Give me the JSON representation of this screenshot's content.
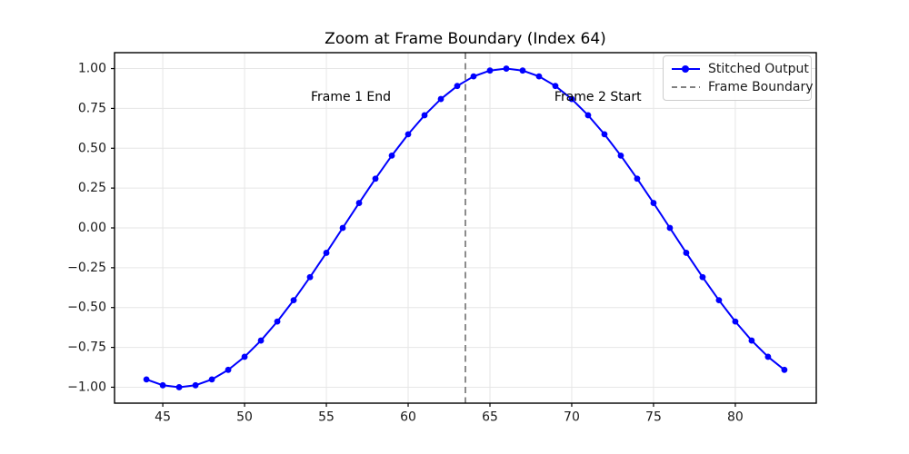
{
  "chart_data": {
    "type": "line",
    "title": "Zoom at Frame Boundary (Index 64)",
    "xlabel": "",
    "ylabel": "",
    "xlim": [
      42.05,
      84.95
    ],
    "ylim": [
      -1.1,
      1.1
    ],
    "grid": true,
    "legend_position": "upper right",
    "x_ticks": [
      45,
      50,
      55,
      60,
      65,
      70,
      75,
      80
    ],
    "x_tick_labels": [
      "45",
      "50",
      "55",
      "60",
      "65",
      "70",
      "75",
      "80"
    ],
    "y_ticks": [
      1.0,
      0.75,
      0.5,
      0.25,
      0.0,
      -0.25,
      -0.5,
      -0.75,
      -1.0
    ],
    "y_tick_labels": [
      "1.00",
      "0.75",
      "0.50",
      "0.25",
      "0.00",
      "−0.25",
      "−0.50",
      "−0.75",
      "−1.00"
    ],
    "series": [
      {
        "name": "Stitched Output",
        "color": "#0000ff",
        "marker": "circle",
        "line_style": "solid",
        "x": [
          44,
          45,
          46,
          47,
          48,
          49,
          50,
          51,
          52,
          53,
          54,
          55,
          56,
          57,
          58,
          59,
          60,
          61,
          62,
          63,
          64,
          65,
          66,
          67,
          68,
          69,
          70,
          71,
          72,
          73,
          74,
          75,
          76,
          77,
          78,
          79,
          80,
          81,
          82,
          83
        ],
        "y": [
          -0.9511,
          -0.9877,
          -1.0,
          -0.9877,
          -0.9511,
          -0.891,
          -0.809,
          -0.7071,
          -0.5878,
          -0.454,
          -0.309,
          -0.1564,
          0.0,
          0.1564,
          0.309,
          0.454,
          0.5878,
          0.7071,
          0.809,
          0.891,
          0.9511,
          0.9877,
          1.0,
          0.9877,
          0.9511,
          0.891,
          0.809,
          0.7071,
          0.5878,
          0.454,
          0.309,
          0.1564,
          0.0,
          -0.1564,
          -0.309,
          -0.454,
          -0.5878,
          -0.7071,
          -0.809,
          -0.891
        ]
      }
    ],
    "boundary": {
      "label": "Frame Boundary",
      "x": 63.5,
      "color": "#808080",
      "line_style": "dashed"
    },
    "annotations": [
      {
        "text": "Frame 1 End",
        "x": 56.5,
        "y": 0.82
      },
      {
        "text": "Frame 2 Start",
        "x": 71.6,
        "y": 0.82
      }
    ],
    "colors": {
      "grid": "#e6e6e6",
      "spine": "#000000",
      "tick_label": "#1a1a1a",
      "series": "#0000ff",
      "boundary": "#808080"
    }
  },
  "legend": {
    "entries": [
      {
        "label": "Stitched Output",
        "color": "#0000ff",
        "style": "line-marker"
      },
      {
        "label": "Frame Boundary",
        "color": "#808080",
        "style": "dashed"
      }
    ]
  }
}
